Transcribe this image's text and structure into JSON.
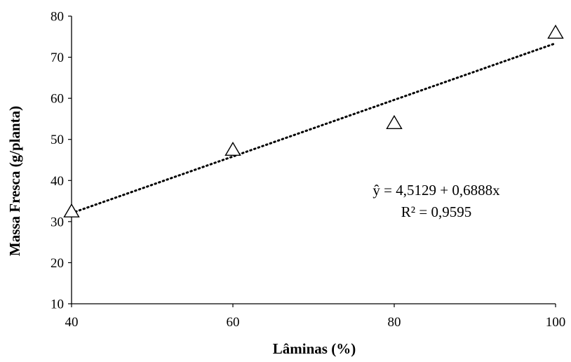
{
  "chart_data": {
    "type": "scatter",
    "xlabel": "Lâminas (%)",
    "ylabel": "Massa Fresca (g/planta)",
    "xlim": [
      40,
      100
    ],
    "ylim": [
      10,
      80
    ],
    "xticks": [
      "40",
      "60",
      "80",
      "100"
    ],
    "yticks": [
      "10",
      "20",
      "30",
      "40",
      "50",
      "60",
      "70",
      "80"
    ],
    "grid": false,
    "legend": "none",
    "marker": "open-triangle",
    "series": [
      {
        "points": [
          {
            "x": 40,
            "y": 32.5
          },
          {
            "x": 60,
            "y": 47.5
          },
          {
            "x": 80,
            "y": 54
          },
          {
            "x": 100,
            "y": 76
          }
        ]
      }
    ],
    "trendline": {
      "type": "linear",
      "style": "dotted",
      "intercept": 4.5129,
      "slope": 0.6888
    },
    "annotations": [
      "ŷ = 4,5129 + 0,6888x",
      "R² = 0,9595"
    ],
    "colors": {
      "axis": "#000000",
      "marker": "#000000",
      "trendline": "#000000"
    }
  }
}
